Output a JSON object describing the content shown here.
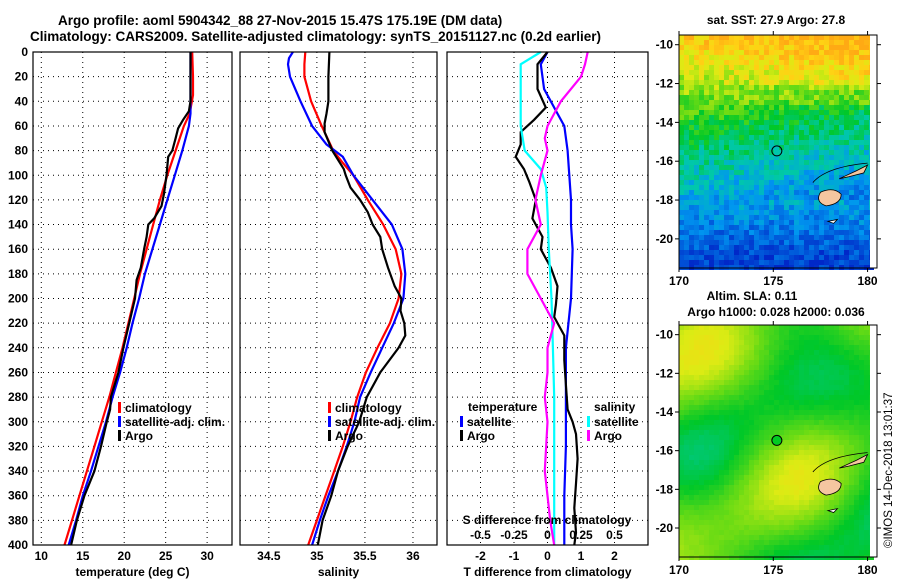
{
  "header": {
    "title_line1": "Argo profile: aoml 5904342_88 27-Nov-2015 15.47S 175.19E (DM data)",
    "title_line2": "Climatology: CARS2009. Satellite-adjusted climatology: synTS_20151127.nc (0.2d earlier)"
  },
  "stamp": "©IMOS 14-Dec-2018 13:01:37",
  "colors": {
    "climatology": "#ff0000",
    "satellite": "#0000ff",
    "argo": "#000000",
    "sal_satellite": "#00ffff",
    "sal_argo": "#ff00ff",
    "land": "#f5c6a0"
  },
  "chart_data": [
    {
      "id": "temperature",
      "type": "line",
      "xlabel": "temperature (deg C)",
      "ylabel": "",
      "xlim": [
        9,
        33
      ],
      "ylim": [
        400,
        0
      ],
      "xticks": [
        10,
        15,
        20,
        25,
        30
      ],
      "yticks": [
        0,
        20,
        40,
        60,
        80,
        100,
        120,
        140,
        160,
        180,
        200,
        220,
        240,
        260,
        280,
        300,
        320,
        340,
        360,
        380,
        400
      ],
      "grid": true,
      "legend": {
        "position": "center-right",
        "entries": [
          "climatology",
          "satellite-adj. clim.",
          "Argo"
        ]
      },
      "series": [
        {
          "name": "climatology",
          "color": "#ff0000",
          "depth": [
            0,
            20,
            35,
            50,
            60,
            80,
            100,
            120,
            140,
            160,
            180,
            200,
            220,
            240,
            260,
            280,
            300,
            320,
            340,
            360,
            380,
            400
          ],
          "values": [
            28.2,
            28.3,
            28.3,
            27.9,
            27.2,
            26.2,
            25.2,
            24.3,
            23.5,
            22.7,
            21.9,
            21.2,
            20.5,
            19.8,
            19.0,
            18.2,
            17.3,
            16.4,
            15.5,
            14.6,
            13.7,
            12.8
          ]
        },
        {
          "name": "satellite-adj. clim.",
          "color": "#0000ff",
          "depth": [
            0,
            20,
            40,
            50,
            60,
            80,
            100,
            120,
            140,
            160,
            180,
            200,
            220,
            240,
            260,
            280,
            300,
            320,
            340,
            360,
            380,
            400
          ],
          "values": [
            28.0,
            28.0,
            28.0,
            28.0,
            27.8,
            27.0,
            26.1,
            25.2,
            24.3,
            23.4,
            22.5,
            21.8,
            21.0,
            20.3,
            19.5,
            18.6,
            17.8,
            16.9,
            16.0,
            15.0,
            14.2,
            13.3
          ]
        },
        {
          "name": "Argo",
          "color": "#000000",
          "depth": [
            0,
            20,
            40,
            48,
            55,
            62,
            70,
            80,
            85,
            100,
            115,
            125,
            135,
            140,
            150,
            160,
            175,
            185,
            200,
            220,
            240,
            260,
            280,
            290,
            300,
            320,
            340,
            360,
            380,
            400
          ],
          "values": [
            28.0,
            28.0,
            28.0,
            27.8,
            27.1,
            26.5,
            26.2,
            25.8,
            25.3,
            25.1,
            24.8,
            24.5,
            23.6,
            22.9,
            22.7,
            22.4,
            22.0,
            21.5,
            21.3,
            20.6,
            19.9,
            19.3,
            18.4,
            18.3,
            17.9,
            17.2,
            16.4,
            15.2,
            14.3,
            13.6
          ]
        }
      ]
    },
    {
      "id": "salinity",
      "type": "line",
      "xlabel": "salinity",
      "ylabel": "",
      "xlim": [
        34.2,
        36.25
      ],
      "ylim": [
        400,
        0
      ],
      "xticks": [
        34.5,
        35,
        35.5,
        36
      ],
      "xticklabels": [
        "34.5",
        "35",
        "35.5",
        "36"
      ],
      "grid": true,
      "legend": {
        "position": "center",
        "entries": [
          "climatology",
          "satellite-adj. clim.",
          "Argo"
        ]
      },
      "series": [
        {
          "name": "climatology",
          "color": "#ff0000",
          "depth": [
            0,
            10,
            20,
            40,
            60,
            80,
            90,
            100,
            120,
            140,
            160,
            180,
            200,
            220,
            240,
            260,
            280,
            300,
            320,
            340,
            360,
            380,
            400
          ],
          "values": [
            34.88,
            34.87,
            34.87,
            34.94,
            35.05,
            35.17,
            35.27,
            35.38,
            35.53,
            35.69,
            35.82,
            35.88,
            35.85,
            35.76,
            35.63,
            35.51,
            35.42,
            35.35,
            35.27,
            35.18,
            35.09,
            35.0,
            34.91
          ]
        },
        {
          "name": "satellite-adj. clim.",
          "color": "#0000ff",
          "depth": [
            0,
            5,
            10,
            20,
            40,
            60,
            75,
            85,
            100,
            120,
            140,
            160,
            180,
            200,
            220,
            240,
            260,
            280,
            300,
            320,
            340,
            360,
            380,
            400
          ],
          "values": [
            34.75,
            34.71,
            34.7,
            34.72,
            34.83,
            34.95,
            35.1,
            35.27,
            35.38,
            35.58,
            35.78,
            35.89,
            35.92,
            35.9,
            35.8,
            35.68,
            35.56,
            35.45,
            35.39,
            35.31,
            35.22,
            35.12,
            35.03,
            34.95
          ]
        },
        {
          "name": "Argo",
          "color": "#000000",
          "depth": [
            0,
            20,
            40,
            50,
            58,
            65,
            80,
            95,
            100,
            110,
            120,
            130,
            140,
            150,
            160,
            175,
            190,
            200,
            210,
            220,
            230,
            240,
            260,
            280,
            300,
            320,
            340,
            360,
            380,
            400
          ],
          "values": [
            35.13,
            35.12,
            35.12,
            35.1,
            35.08,
            35.08,
            35.16,
            35.28,
            35.3,
            35.35,
            35.45,
            35.53,
            35.58,
            35.66,
            35.68,
            35.74,
            35.81,
            35.88,
            35.87,
            35.91,
            35.92,
            35.85,
            35.66,
            35.52,
            35.44,
            35.32,
            35.22,
            35.15,
            35.06,
            35.01
          ]
        }
      ]
    },
    {
      "id": "difference",
      "type": "line",
      "xlabel": "T difference from climatology",
      "x2label": "S difference from climatology",
      "xlim": [
        -3,
        3
      ],
      "ylim": [
        400,
        0
      ],
      "xticks": [
        -2,
        -1,
        0,
        1,
        2
      ],
      "x2lim": [
        -0.75,
        0.75
      ],
      "x2ticks": [
        -0.5,
        -0.25,
        0,
        0.25,
        0.5
      ],
      "x2ticklabels": [
        "-0.5",
        "-0.25",
        "0",
        "0.25",
        "0.5"
      ],
      "grid": true,
      "legend": [
        {
          "position": "left",
          "title": "temperature",
          "entries": [
            "satellite",
            "Argo"
          ]
        },
        {
          "position": "right",
          "title": "salinity",
          "entries": [
            "satellite",
            "Argo"
          ]
        }
      ],
      "series": [
        {
          "name": "temperature satellite",
          "axis": "T",
          "color": "#0000ff",
          "depth": [
            0,
            10,
            30,
            50,
            60,
            80,
            100,
            120,
            140,
            160,
            200,
            240,
            280,
            320,
            360,
            400
          ],
          "values": [
            0.0,
            -0.2,
            -0.1,
            0.3,
            0.5,
            0.6,
            0.65,
            0.7,
            0.7,
            0.75,
            0.7,
            0.55,
            0.55,
            0.55,
            0.5,
            0.5
          ]
        },
        {
          "name": "temperature Argo",
          "axis": "T",
          "color": "#000000",
          "depth": [
            0,
            10,
            30,
            45,
            55,
            65,
            75,
            85,
            95,
            105,
            120,
            135,
            150,
            160,
            175,
            190,
            205,
            215,
            230,
            250,
            270,
            290,
            300,
            310,
            330,
            350,
            370,
            390,
            400
          ],
          "values": [
            0.0,
            -0.3,
            -0.3,
            -0.05,
            -0.4,
            -0.8,
            -0.8,
            -0.95,
            -0.7,
            -0.55,
            -0.35,
            -0.45,
            -0.15,
            -0.2,
            0.1,
            0.3,
            0.25,
            0.2,
            0.5,
            0.5,
            0.55,
            0.6,
            0.75,
            0.85,
            0.9,
            0.85,
            0.8,
            0.85,
            0.8
          ]
        },
        {
          "name": "salinity satellite",
          "axis": "S",
          "color": "#00ffff",
          "depth": [
            0,
            10,
            30,
            50,
            60,
            80,
            95,
            110,
            130,
            160,
            200,
            240,
            280,
            320,
            360,
            400
          ],
          "values": [
            -0.05,
            -0.2,
            -0.2,
            -0.2,
            -0.2,
            -0.17,
            -0.05,
            -0.01,
            0.0,
            0.01,
            0.03,
            0.04,
            0.05,
            0.05,
            0.05,
            0.05
          ]
        },
        {
          "name": "salinity Argo",
          "axis": "S",
          "color": "#ff00ff",
          "depth": [
            0,
            10,
            20,
            40,
            50,
            60,
            70,
            80,
            100,
            120,
            140,
            160,
            180,
            200,
            220,
            240,
            260,
            280,
            300,
            340,
            380,
            400
          ],
          "values": [
            0.3,
            0.28,
            0.25,
            0.1,
            0.05,
            0.0,
            -0.02,
            0.0,
            -0.05,
            -0.09,
            -0.05,
            -0.15,
            -0.15,
            -0.05,
            0.05,
            0.0,
            0.0,
            -0.02,
            0.0,
            -0.02,
            0.02,
            0.05
          ]
        }
      ]
    },
    {
      "id": "sst-map",
      "type": "heatmap",
      "title": "sat. SST: 27.9 Argo: 27.8",
      "xlim": [
        170,
        180.5
      ],
      "ylim": [
        -21.5,
        -9.5
      ],
      "xticks": [
        170,
        175,
        180
      ],
      "yticks": [
        -10,
        -12,
        -14,
        -16,
        -18,
        -20
      ],
      "marker": {
        "lon": 175.19,
        "lat": -15.47,
        "style": "open-circle"
      },
      "description": "warm (orange/yellow) in north, green mid-latitudes, cooler blue in south"
    },
    {
      "id": "sla-map",
      "type": "heatmap",
      "title_line1": "Altim. SLA: 0.11",
      "title_line2": "Argo h1000: 0.028 h2000: 0.036",
      "xlim": [
        170,
        180.5
      ],
      "ylim": [
        -21.5,
        -9.5
      ],
      "xticks": [
        170,
        175,
        180
      ],
      "yticks": [
        -10,
        -12,
        -14,
        -16,
        -18,
        -20
      ],
      "marker": {
        "lon": 175.19,
        "lat": -15.47,
        "style": "filled-green-circle"
      },
      "description": "smooth green field with yellow high-SLA patches in west and south"
    }
  ]
}
